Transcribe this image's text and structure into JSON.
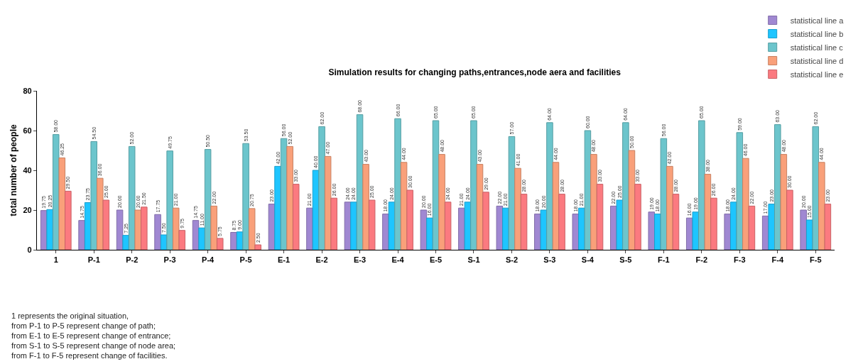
{
  "chart_data": {
    "type": "bar",
    "title": "Simulation results for changing paths,entrances,node aera and facilities",
    "ylabel": "total number of people",
    "categories": [
      "1",
      "P-1",
      "P-2",
      "P-3",
      "P-4",
      "P-5",
      "E-1",
      "E-2",
      "E-3",
      "E-4",
      "E-5",
      "S-1",
      "S-2",
      "S-3",
      "S-4",
      "S-5",
      "F-1",
      "F-2",
      "F-3",
      "F-4",
      "F-5"
    ],
    "series": [
      {
        "name": "statistical line a",
        "color": "#a088d2",
        "values": [
          19.75,
          14.75,
          20,
          17.75,
          14.75,
          8.75,
          23,
          21,
          24,
          18,
          20,
          21,
          22,
          18,
          18,
          22,
          19,
          16,
          18,
          17,
          20
        ],
        "value_labels": [
          "19.75",
          "14.75",
          "20.00",
          "17.75",
          "14.75",
          "8.75",
          "23.00",
          "21.00",
          "24.00",
          "18.00",
          "20.00",
          "21.00",
          "22.00",
          "18.00",
          "18.00",
          "22.00",
          "19.00",
          "16.00",
          "18.00",
          "17.00",
          "20.00"
        ]
      },
      {
        "name": "statistical line b",
        "color": "#1ec5ff",
        "values": [
          20.25,
          23.75,
          7.25,
          7.5,
          11,
          9,
          42,
          40,
          24,
          24,
          16,
          24,
          21,
          20,
          21,
          25,
          18,
          19,
          24,
          23,
          15
        ],
        "value_labels": [
          "20.25",
          "23.75",
          "7.25",
          "7.50",
          "11.00",
          "9.00",
          "42.00",
          "40.00",
          "24.00",
          "24.00",
          "16.00",
          "24.00",
          "21.00",
          "20.00",
          "21.00",
          "25.00",
          "18.00",
          "19.00",
          "24.00",
          "23.00",
          "15.00"
        ]
      },
      {
        "name": "statistical line c",
        "color": "#6cc5cc",
        "values": [
          58,
          54.5,
          52,
          49.75,
          50.5,
          53.5,
          56,
          62,
          68,
          66,
          65,
          65,
          57,
          64,
          60,
          64,
          56,
          65,
          59,
          63,
          62
        ],
        "value_labels": [
          "58.00",
          "54.50",
          "52.00",
          "49.75",
          "50.50",
          "53.50",
          "56.00",
          "62.00",
          "68.00",
          "66.00",
          "65.00",
          "65.00",
          "57.00",
          "64.00",
          "60.00",
          "64.00",
          "56.00",
          "65.00",
          "59.00",
          "63.00",
          "62.00"
        ]
      },
      {
        "name": "statistical line d",
        "color": "#f9a07a",
        "values": [
          46.25,
          36,
          20,
          21,
          22,
          20.75,
          52,
          47,
          43,
          44,
          48,
          43,
          41,
          44,
          48,
          50,
          42,
          38,
          46,
          48,
          44
        ],
        "value_labels": [
          "46.25",
          "36.00",
          "20.00",
          "21.00",
          "22.00",
          "20.75",
          "52.00",
          "47.00",
          "43.00",
          "44.00",
          "48.00",
          "43.00",
          "41.00",
          "44.00",
          "48.00",
          "50.00",
          "42.00",
          "38.00",
          "46.00",
          "48.00",
          "44.00"
        ]
      },
      {
        "name": "statistical line e",
        "color": "#fb7a80",
        "values": [
          29.5,
          25,
          21.5,
          9.75,
          5.75,
          2.5,
          33,
          26,
          25,
          30,
          24,
          29,
          28,
          28,
          33,
          33,
          28,
          26,
          22,
          30,
          23
        ],
        "value_labels": [
          "29.50",
          "25.00",
          "21.50",
          "9.75",
          "5.75",
          "2.50",
          "33.00",
          "26.00",
          "25.00",
          "30.00",
          "24.00",
          "29.00",
          "28.00",
          "28.00",
          "33.00",
          "33.00",
          "28.00",
          "26.00",
          "22.00",
          "30.00",
          "23.00"
        ]
      }
    ],
    "ylim": [
      0,
      80
    ],
    "yticks": [
      0,
      20,
      40,
      60,
      80
    ],
    "grid": false,
    "legend": "top right",
    "annotations": [
      "1 represents the original situation,",
      "from P-1 to P-5 represent change of path;",
      "from E-1 to E-5 represent change of entrance;",
      "from S-1 to S-5 represent change of node area;",
      "from F-1 to F-5 represent change of facilities."
    ]
  }
}
